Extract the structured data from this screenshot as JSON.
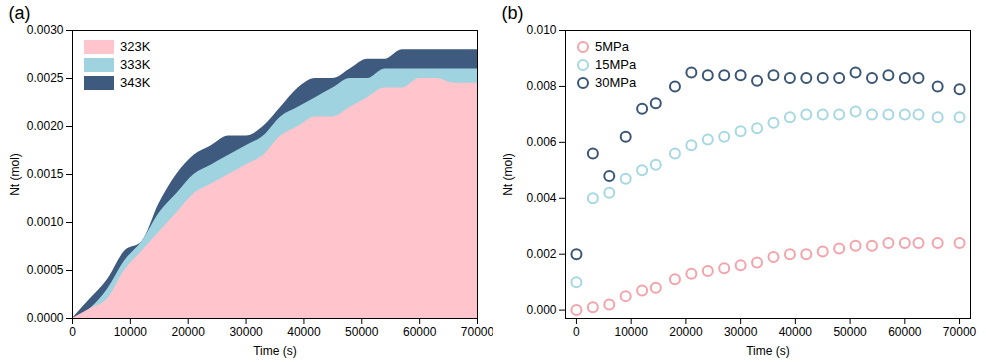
{
  "chart_data": [
    {
      "type": "area",
      "title": "(a)",
      "xlabel": "Time (s)",
      "ylabel": "Nt (mol)",
      "x": [
        0,
        3000,
        6000,
        9000,
        12000,
        15000,
        18000,
        21000,
        24000,
        27000,
        30000,
        33000,
        36000,
        39000,
        42000,
        45000,
        48000,
        51000,
        54000,
        57000,
        60000,
        63000,
        66000,
        70000
      ],
      "series": [
        {
          "name": "323K",
          "color": "#ffc4cc",
          "values": [
            0,
            0.0001,
            0.0002,
            0.0005,
            0.0007,
            0.0009,
            0.0011,
            0.0013,
            0.0014,
            0.0015,
            0.0016,
            0.0017,
            0.0019,
            0.002,
            0.0021,
            0.0021,
            0.0022,
            0.0023,
            0.0024,
            0.0024,
            0.0025,
            0.0025,
            0.00245,
            0.00245
          ]
        },
        {
          "name": "333K",
          "color": "#9fd3e0",
          "values": [
            0,
            0.0001,
            0.0003,
            0.0006,
            0.0008,
            0.0011,
            0.0013,
            0.0015,
            0.0016,
            0.0017,
            0.0018,
            0.0019,
            0.0021,
            0.0022,
            0.0023,
            0.0024,
            0.0025,
            0.0025,
            0.0026,
            0.0026,
            0.0026,
            0.0026,
            0.0026,
            0.0026
          ]
        },
        {
          "name": "343K",
          "color": "#3e5a7e",
          "values": [
            0,
            0.0002,
            0.0004,
            0.0007,
            0.0008,
            0.0012,
            0.0015,
            0.0017,
            0.0018,
            0.0019,
            0.0019,
            0.002,
            0.0022,
            0.0024,
            0.0025,
            0.0025,
            0.0026,
            0.0027,
            0.0027,
            0.0028,
            0.0028,
            0.0028,
            0.0028,
            0.0028
          ]
        }
      ],
      "xlim": [
        0,
        70000
      ],
      "ylim": [
        0,
        0.003
      ],
      "xticks": [
        0,
        10000,
        20000,
        30000,
        40000,
        50000,
        60000,
        70000
      ],
      "yticks": [
        {
          "value": 0,
          "label": "0.0000"
        },
        {
          "value": 0.0005,
          "label": "0.0005"
        },
        {
          "value": 0.001,
          "label": "0.0010"
        },
        {
          "value": 0.0015,
          "label": "0.0015"
        },
        {
          "value": 0.002,
          "label": "0.0020"
        },
        {
          "value": 0.0025,
          "label": "0.0025"
        },
        {
          "value": 0.003,
          "label": "0.0030"
        }
      ],
      "legend": "top-left"
    },
    {
      "type": "scatter",
      "title": "(b)",
      "xlabel": "Time (s)",
      "ylabel": "Nt (mol)",
      "marker": "circle",
      "x": [
        0,
        3000,
        6000,
        9000,
        12000,
        14500,
        18000,
        21000,
        24000,
        27000,
        30000,
        33000,
        36000,
        39000,
        42000,
        45000,
        48000,
        51000,
        54000,
        57000,
        60000,
        62500,
        66000,
        70000
      ],
      "series": [
        {
          "name": "5MPa",
          "color": "#f4a3ab",
          "values": [
            0,
            0.0001,
            0.0002,
            0.0005,
            0.0007,
            0.0008,
            0.0011,
            0.0013,
            0.0014,
            0.0015,
            0.0016,
            0.0017,
            0.0019,
            0.002,
            0.002,
            0.0021,
            0.0022,
            0.0023,
            0.0023,
            0.0024,
            0.0024,
            0.0024,
            0.0024,
            0.0024
          ]
        },
        {
          "name": "15MPa",
          "color": "#a6d8e2",
          "values": [
            0.001,
            0.004,
            0.0042,
            0.0047,
            0.005,
            0.0052,
            0.0056,
            0.0059,
            0.0061,
            0.0062,
            0.0064,
            0.0065,
            0.0067,
            0.0069,
            0.007,
            0.007,
            0.007,
            0.0071,
            0.007,
            0.007,
            0.007,
            0.007,
            0.0069,
            0.0069
          ]
        },
        {
          "name": "30MPa",
          "color": "#3b5675",
          "values": [
            0.002,
            0.0056,
            0.0048,
            0.0062,
            0.0072,
            0.0074,
            0.008,
            0.0085,
            0.0084,
            0.0084,
            0.0084,
            0.0082,
            0.0084,
            0.0083,
            0.0083,
            0.0083,
            0.0083,
            0.0085,
            0.0083,
            0.0084,
            0.0083,
            0.0083,
            0.008,
            0.0079
          ]
        }
      ],
      "xlim": [
        -2000,
        72000
      ],
      "ylim": [
        -0.0003,
        0.01
      ],
      "xticks": [
        0,
        10000,
        20000,
        30000,
        40000,
        50000,
        60000,
        70000
      ],
      "yticks": [
        {
          "value": 0,
          "label": "0.000"
        },
        {
          "value": 0.002,
          "label": "0.002"
        },
        {
          "value": 0.004,
          "label": "0.004"
        },
        {
          "value": 0.006,
          "label": "0.006"
        },
        {
          "value": 0.008,
          "label": "0.008"
        },
        {
          "value": 0.01,
          "label": "0.010"
        }
      ],
      "legend": "top-left"
    }
  ]
}
